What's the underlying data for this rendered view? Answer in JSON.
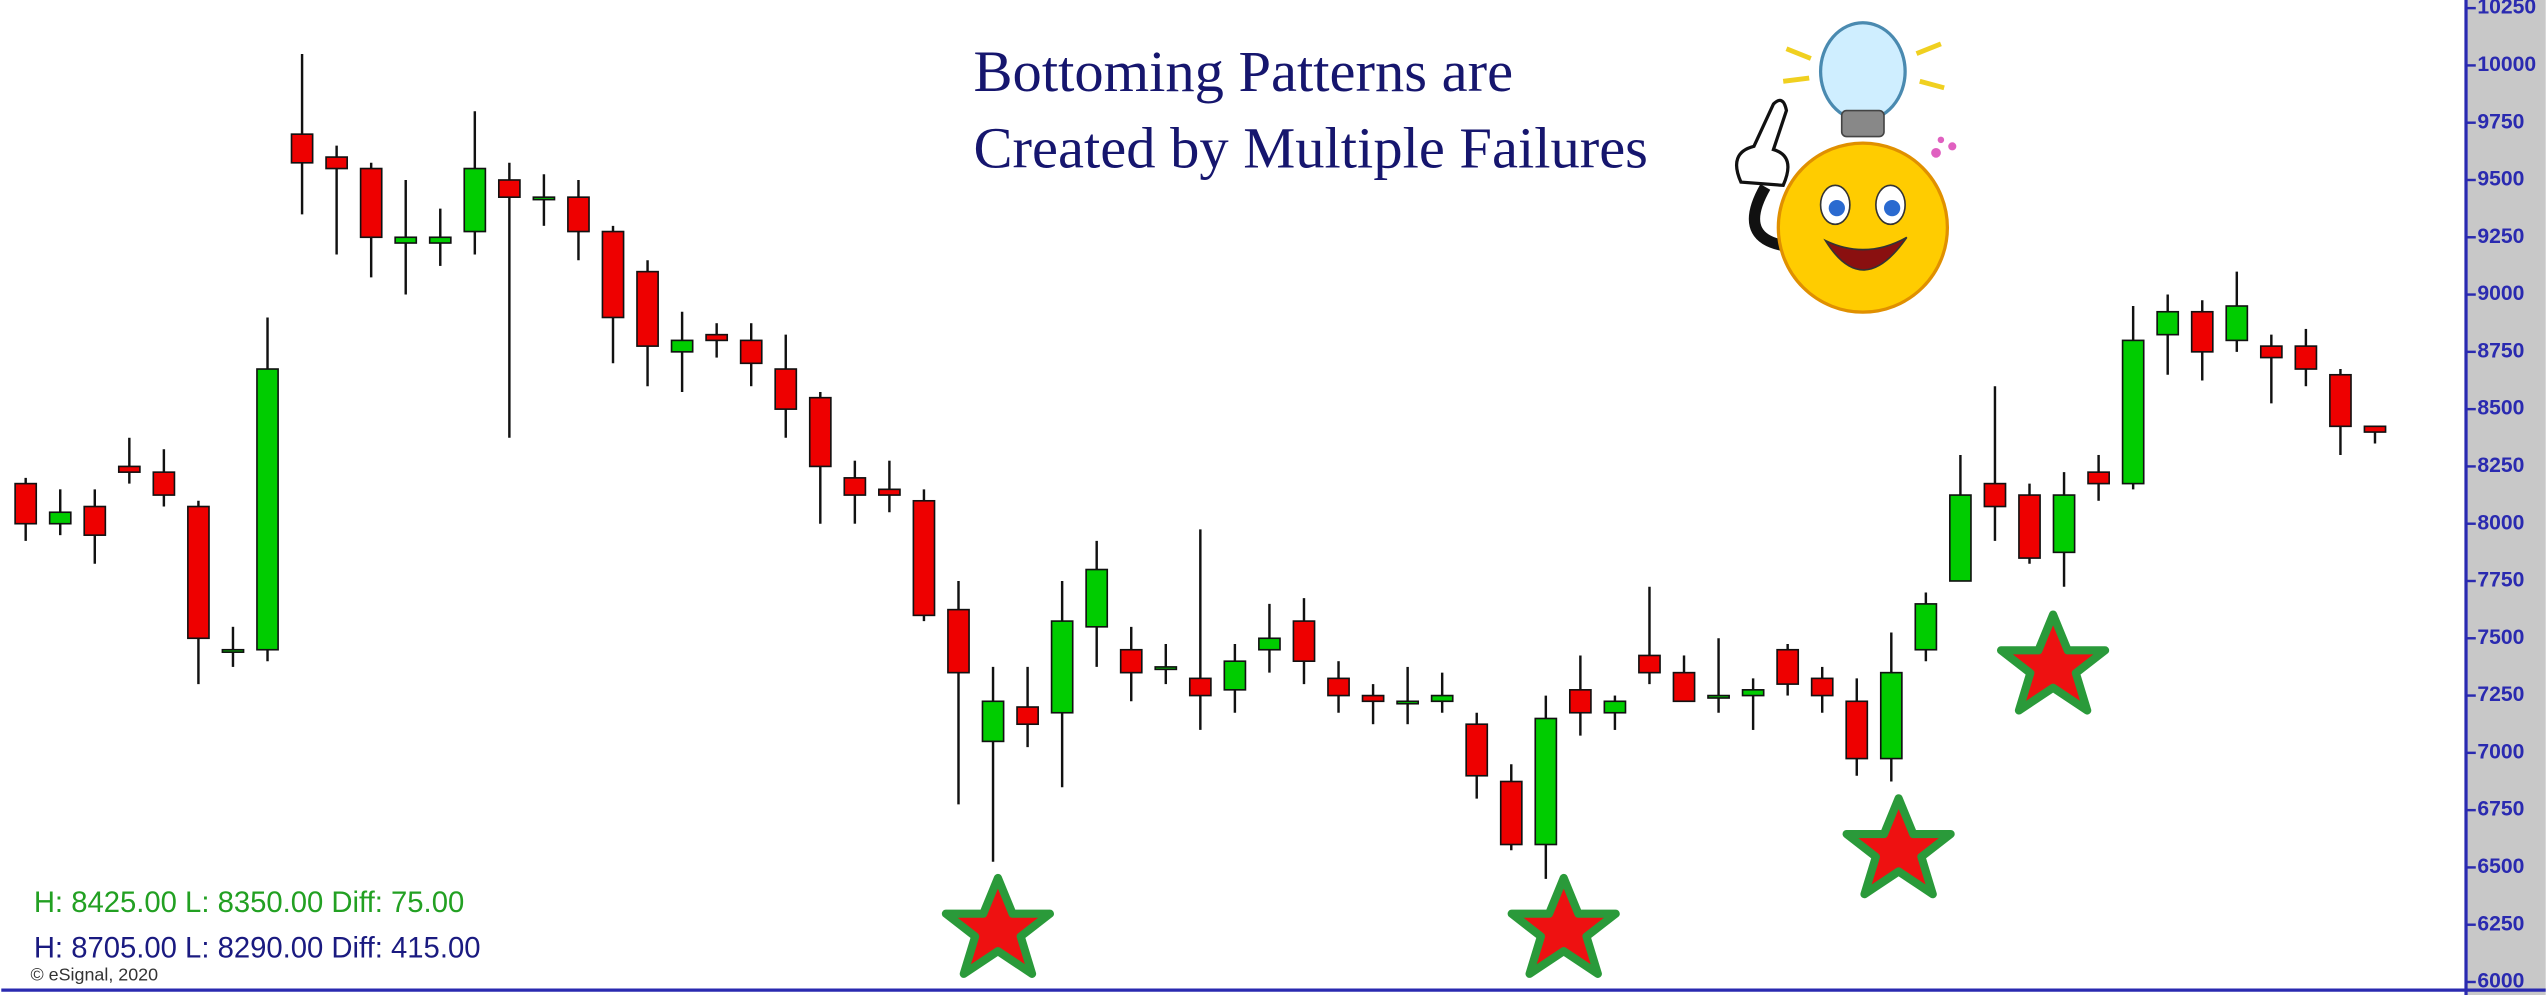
{
  "chart_data": {
    "type": "candlestick",
    "title": [
      "Bottoming Patterns are",
      "Created by Multiple Failures"
    ],
    "annotations": [
      "H: 8425.00 L: 8350.00 Diff: 75.00",
      "H: 8705.00 L: 8290.00 Diff: 415.00",
      "© eSignal, 2020"
    ],
    "up_color": "#00cc00",
    "down_color": "#ee0000",
    "open": [
      8175,
      8000,
      8075,
      8250,
      8225,
      8075,
      7450,
      7450,
      9700,
      9600,
      9550,
      9225,
      9225,
      9275,
      9500,
      9425,
      9425,
      9275,
      9100,
      8750,
      8825,
      8800,
      8675,
      8550,
      8200,
      8150,
      8100,
      7625,
      7050,
      7200,
      7175,
      7550,
      7450,
      7375,
      7325,
      7275,
      7450,
      7575,
      7325,
      7250,
      7225,
      7225,
      7125,
      6875,
      6600,
      7275,
      7175,
      7425,
      7350,
      7250,
      7250,
      7450,
      7325,
      7225,
      6975,
      7450,
      7750,
      8175,
      8125,
      7875,
      8225,
      8175,
      8825,
      8925,
      8800,
      8775,
      8775,
      8650,
      8425
    ],
    "high": [
      8200,
      8150,
      8150,
      8375,
      8325,
      8100,
      7550,
      8900,
      10050,
      9650,
      9575,
      9500,
      9375,
      9800,
      9575,
      9525,
      9500,
      9300,
      9150,
      8925,
      8875,
      8875,
      8825,
      8575,
      8275,
      8275,
      8150,
      7750,
      7375,
      7375,
      7750,
      7925,
      7550,
      7475,
      7975,
      7475,
      7650,
      7675,
      7400,
      7300,
      7375,
      7350,
      7175,
      6950,
      7250,
      7425,
      7250,
      7725,
      7425,
      7500,
      7325,
      7475,
      7375,
      7325,
      7525,
      7700,
      8300,
      8600,
      8175,
      8225,
      8300,
      8950,
      9000,
      8975,
      9100,
      8825,
      8850,
      8675,
      8425
    ],
    "low": [
      7925,
      7950,
      7825,
      8175,
      8075,
      7300,
      7375,
      7400,
      9350,
      9175,
      9075,
      9000,
      9125,
      9175,
      8375,
      9300,
      9150,
      8700,
      8600,
      8575,
      8725,
      8600,
      8375,
      8000,
      8000,
      8050,
      7575,
      6775,
      6525,
      7025,
      6850,
      7375,
      7225,
      7300,
      7100,
      7175,
      7350,
      7300,
      7175,
      7125,
      7125,
      7175,
      6800,
      6575,
      6450,
      7075,
      7100,
      7300,
      7225,
      7175,
      7100,
      7250,
      7175,
      6900,
      6875,
      7400,
      7750,
      7925,
      7825,
      7725,
      8100,
      8150,
      8650,
      8625,
      8750,
      8525,
      8600,
      8300,
      8350
    ],
    "close": [
      8000,
      8050,
      7950,
      8225,
      8125,
      7500,
      7450,
      8675,
      9575,
      9550,
      9250,
      9250,
      9250,
      9550,
      9425,
      9425,
      9275,
      8900,
      8775,
      8800,
      8800,
      8700,
      8500,
      8250,
      8125,
      8125,
      7600,
      7350,
      7225,
      7125,
      7575,
      7800,
      7350,
      7375,
      7250,
      7400,
      7500,
      7400,
      7250,
      7225,
      7225,
      7250,
      6900,
      6600,
      7150,
      7175,
      7225,
      7350,
      7225,
      7250,
      7275,
      7300,
      7250,
      6975,
      7350,
      7650,
      8125,
      8075,
      7850,
      8125,
      8175,
      8800,
      8925,
      8750,
      8950,
      8725,
      8675,
      8425,
      8400
    ],
    "ylim": [
      6000,
      10250
    ],
    "yticks": [
      6000,
      6250,
      6500,
      6750,
      7000,
      7250,
      7500,
      7750,
      8000,
      8250,
      8500,
      8750,
      9000,
      9250,
      9500,
      9750,
      10000,
      10250
    ]
  }
}
